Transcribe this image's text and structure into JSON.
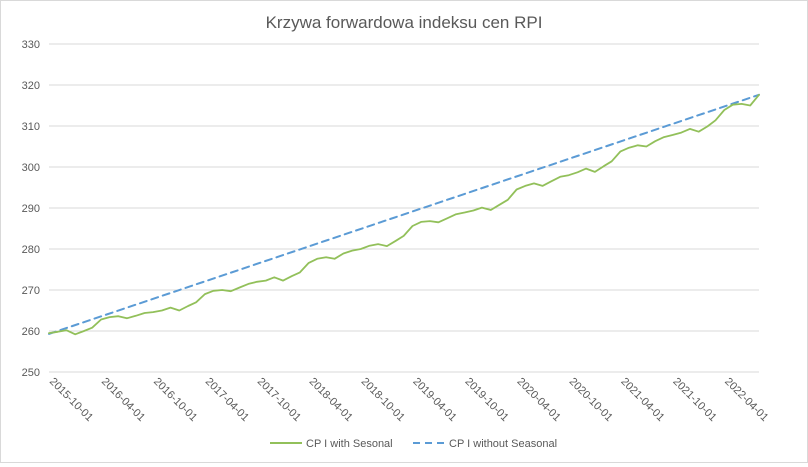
{
  "chart_data": {
    "type": "line",
    "title": "Krzywa forwardowa indeksu cen RPI",
    "xlabel": "",
    "ylabel": "",
    "ylim": [
      250,
      330
    ],
    "yticks": [
      250,
      260,
      270,
      280,
      290,
      300,
      310,
      320,
      330
    ],
    "xlim": [
      "2015-10-01",
      "2022-08-01"
    ],
    "xticks": [
      "2015-10-01",
      "2016-04-01",
      "2016-10-01",
      "2017-04-01",
      "2017-10-01",
      "2018-04-01",
      "2018-10-01",
      "2019-04-01",
      "2019-10-01",
      "2020-04-01",
      "2020-10-01",
      "2021-04-01",
      "2021-10-01",
      "2022-04-01"
    ],
    "grid": true,
    "legend_position": "bottom",
    "series": [
      {
        "name": "CP I with Sesonal",
        "color": "#92c05a",
        "style": "solid",
        "points": [
          [
            "2015-10-01",
            259.5
          ],
          [
            "2015-11-01",
            259.8
          ],
          [
            "2015-12-01",
            260.2
          ],
          [
            "2016-01-01",
            259.2
          ],
          [
            "2016-02-01",
            260.0
          ],
          [
            "2016-03-01",
            260.8
          ],
          [
            "2016-04-01",
            262.8
          ],
          [
            "2016-05-01",
            263.4
          ],
          [
            "2016-06-01",
            263.6
          ],
          [
            "2016-07-01",
            263.1
          ],
          [
            "2016-08-01",
            263.7
          ],
          [
            "2016-09-01",
            264.4
          ],
          [
            "2016-10-01",
            264.6
          ],
          [
            "2016-11-01",
            265.0
          ],
          [
            "2016-12-01",
            265.7
          ],
          [
            "2017-01-01",
            265.0
          ],
          [
            "2017-02-01",
            266.1
          ],
          [
            "2017-03-01",
            267.0
          ],
          [
            "2017-04-01",
            269.0
          ],
          [
            "2017-05-01",
            269.8
          ],
          [
            "2017-06-01",
            270.0
          ],
          [
            "2017-07-01",
            269.7
          ],
          [
            "2017-08-01",
            270.6
          ],
          [
            "2017-09-01",
            271.5
          ],
          [
            "2017-10-01",
            272.0
          ],
          [
            "2017-11-01",
            272.3
          ],
          [
            "2017-12-01",
            273.1
          ],
          [
            "2018-01-01",
            272.3
          ],
          [
            "2018-02-01",
            273.4
          ],
          [
            "2018-03-01",
            274.3
          ],
          [
            "2018-04-01",
            276.6
          ],
          [
            "2018-05-01",
            277.6
          ],
          [
            "2018-06-01",
            278.0
          ],
          [
            "2018-07-01",
            277.6
          ],
          [
            "2018-08-01",
            278.9
          ],
          [
            "2018-09-01",
            279.6
          ],
          [
            "2018-10-01",
            280.0
          ],
          [
            "2018-11-01",
            280.8
          ],
          [
            "2018-12-01",
            281.2
          ],
          [
            "2019-01-01",
            280.7
          ],
          [
            "2019-02-01",
            282.0
          ],
          [
            "2019-03-01",
            283.2
          ],
          [
            "2019-04-01",
            285.6
          ],
          [
            "2019-05-01",
            286.6
          ],
          [
            "2019-06-01",
            286.8
          ],
          [
            "2019-07-01",
            286.5
          ],
          [
            "2019-08-01",
            287.5
          ],
          [
            "2019-09-01",
            288.5
          ],
          [
            "2019-10-01",
            288.9
          ],
          [
            "2019-11-01",
            289.4
          ],
          [
            "2019-12-01",
            290.1
          ],
          [
            "2020-01-01",
            289.5
          ],
          [
            "2020-02-01",
            290.8
          ],
          [
            "2020-03-01",
            292.0
          ],
          [
            "2020-04-01",
            294.5
          ],
          [
            "2020-05-01",
            295.4
          ],
          [
            "2020-06-01",
            296.0
          ],
          [
            "2020-07-01",
            295.4
          ],
          [
            "2020-08-01",
            296.5
          ],
          [
            "2020-09-01",
            297.6
          ],
          [
            "2020-10-01",
            298.0
          ],
          [
            "2020-11-01",
            298.7
          ],
          [
            "2020-12-01",
            299.6
          ],
          [
            "2021-01-01",
            298.8
          ],
          [
            "2021-02-01",
            300.2
          ],
          [
            "2021-03-01",
            301.4
          ],
          [
            "2021-04-01",
            303.8
          ],
          [
            "2021-05-01",
            304.7
          ],
          [
            "2021-06-01",
            305.3
          ],
          [
            "2021-07-01",
            305.0
          ],
          [
            "2021-08-01",
            306.3
          ],
          [
            "2021-09-01",
            307.3
          ],
          [
            "2021-10-01",
            307.8
          ],
          [
            "2021-11-01",
            308.4
          ],
          [
            "2021-12-01",
            309.3
          ],
          [
            "2022-01-01",
            308.6
          ],
          [
            "2022-02-01",
            309.9
          ],
          [
            "2022-03-01",
            311.4
          ],
          [
            "2022-04-01",
            313.9
          ],
          [
            "2022-05-01",
            315.2
          ],
          [
            "2022-06-01",
            315.4
          ],
          [
            "2022-07-01",
            315.0
          ],
          [
            "2022-08-01",
            317.6
          ]
        ]
      },
      {
        "name": "CP I without Seasonal",
        "color": "#5b9bd5",
        "style": "dashed",
        "points": [
          [
            "2015-10-01",
            259.3
          ],
          [
            "2022-08-01",
            317.6
          ]
        ]
      }
    ]
  }
}
